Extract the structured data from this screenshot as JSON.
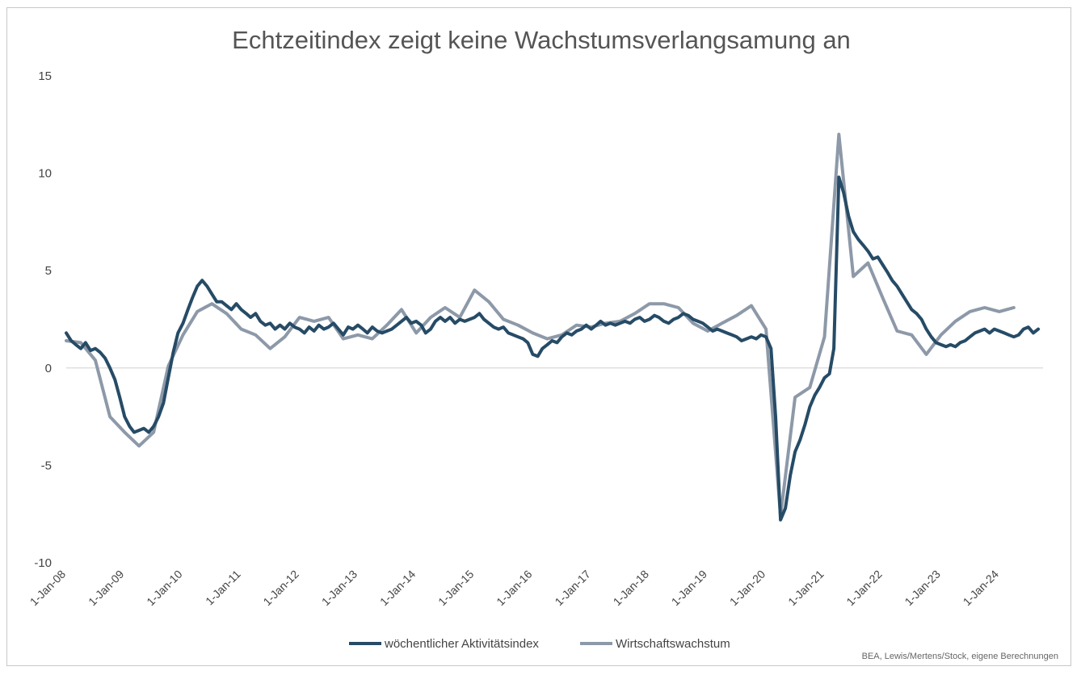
{
  "chart_data": {
    "type": "line",
    "title": "Echtzeitindex zeigt keine Wachstumsverlangsamung an",
    "xlabel": "",
    "ylabel": "",
    "ylim": [
      -10,
      15
    ],
    "yticks": [
      15,
      10,
      5,
      0,
      -5,
      -10
    ],
    "xlim": [
      "2008-01-01",
      "2024-10-01"
    ],
    "xticks": [
      {
        "label": "1-Jan-08",
        "date": "2008-01-01"
      },
      {
        "label": "1-Jan-09",
        "date": "2009-01-01"
      },
      {
        "label": "1-Jan-10",
        "date": "2010-01-01"
      },
      {
        "label": "1-Jan-11",
        "date": "2011-01-01"
      },
      {
        "label": "1-Jan-12",
        "date": "2012-01-01"
      },
      {
        "label": "1-Jan-13",
        "date": "2013-01-01"
      },
      {
        "label": "1-Jan-14",
        "date": "2014-01-01"
      },
      {
        "label": "1-Jan-15",
        "date": "2015-01-01"
      },
      {
        "label": "1-Jan-16",
        "date": "2016-01-01"
      },
      {
        "label": "1-Jan-17",
        "date": "2017-01-01"
      },
      {
        "label": "1-Jan-18",
        "date": "2018-01-01"
      },
      {
        "label": "1-Jan-19",
        "date": "2019-01-01"
      },
      {
        "label": "1-Jan-20",
        "date": "2020-01-01"
      },
      {
        "label": "1-Jan-21",
        "date": "2021-01-01"
      },
      {
        "label": "1-Jan-22",
        "date": "2022-01-01"
      },
      {
        "label": "1-Jan-23",
        "date": "2023-01-01"
      },
      {
        "label": "1-Jan-24",
        "date": "2024-01-01"
      }
    ],
    "grid": false,
    "legend_position": "bottom",
    "series": [
      {
        "name": "wöchentlicher Aktivitätsindex",
        "color": "#264b66",
        "points": [
          [
            "2008-01-01",
            1.8
          ],
          [
            "2008-02-01",
            1.4
          ],
          [
            "2008-03-01",
            1.2
          ],
          [
            "2008-04-01",
            1.0
          ],
          [
            "2008-05-01",
            1.3
          ],
          [
            "2008-06-01",
            0.9
          ],
          [
            "2008-07-01",
            1.0
          ],
          [
            "2008-08-01",
            0.8
          ],
          [
            "2008-09-01",
            0.5
          ],
          [
            "2008-10-01",
            0.0
          ],
          [
            "2008-11-01",
            -0.6
          ],
          [
            "2008-12-01",
            -1.5
          ],
          [
            "2009-01-01",
            -2.5
          ],
          [
            "2009-02-01",
            -3.0
          ],
          [
            "2009-03-01",
            -3.3
          ],
          [
            "2009-04-01",
            -3.2
          ],
          [
            "2009-05-01",
            -3.1
          ],
          [
            "2009-06-01",
            -3.3
          ],
          [
            "2009-07-01",
            -3.0
          ],
          [
            "2009-08-01",
            -2.5
          ],
          [
            "2009-09-01",
            -1.8
          ],
          [
            "2009-10-01",
            -0.5
          ],
          [
            "2009-11-01",
            0.8
          ],
          [
            "2009-12-01",
            1.8
          ],
          [
            "2010-01-01",
            2.3
          ],
          [
            "2010-02-01",
            3.0
          ],
          [
            "2010-03-01",
            3.6
          ],
          [
            "2010-04-01",
            4.2
          ],
          [
            "2010-05-01",
            4.5
          ],
          [
            "2010-06-01",
            4.2
          ],
          [
            "2010-07-01",
            3.8
          ],
          [
            "2010-08-01",
            3.4
          ],
          [
            "2010-09-01",
            3.4
          ],
          [
            "2010-10-01",
            3.2
          ],
          [
            "2010-11-01",
            3.0
          ],
          [
            "2010-12-01",
            3.3
          ],
          [
            "2011-01-01",
            3.0
          ],
          [
            "2011-02-01",
            2.8
          ],
          [
            "2011-03-01",
            2.6
          ],
          [
            "2011-04-01",
            2.8
          ],
          [
            "2011-05-01",
            2.4
          ],
          [
            "2011-06-01",
            2.2
          ],
          [
            "2011-07-01",
            2.3
          ],
          [
            "2011-08-01",
            2.0
          ],
          [
            "2011-09-01",
            2.2
          ],
          [
            "2011-10-01",
            2.0
          ],
          [
            "2011-11-01",
            2.3
          ],
          [
            "2011-12-01",
            2.1
          ],
          [
            "2012-01-01",
            2.0
          ],
          [
            "2012-02-01",
            1.8
          ],
          [
            "2012-03-01",
            2.1
          ],
          [
            "2012-04-01",
            1.9
          ],
          [
            "2012-05-01",
            2.2
          ],
          [
            "2012-06-01",
            2.0
          ],
          [
            "2012-07-01",
            2.1
          ],
          [
            "2012-08-01",
            2.3
          ],
          [
            "2012-09-01",
            2.0
          ],
          [
            "2012-10-01",
            1.7
          ],
          [
            "2012-11-01",
            2.1
          ],
          [
            "2012-12-01",
            2.0
          ],
          [
            "2013-01-01",
            2.2
          ],
          [
            "2013-02-01",
            2.0
          ],
          [
            "2013-03-01",
            1.8
          ],
          [
            "2013-04-01",
            2.1
          ],
          [
            "2013-05-01",
            1.9
          ],
          [
            "2013-06-01",
            1.8
          ],
          [
            "2013-07-01",
            1.9
          ],
          [
            "2013-08-01",
            2.0
          ],
          [
            "2013-09-01",
            2.2
          ],
          [
            "2013-10-01",
            2.4
          ],
          [
            "2013-11-01",
            2.6
          ],
          [
            "2013-12-01",
            2.3
          ],
          [
            "2014-01-01",
            2.4
          ],
          [
            "2014-02-01",
            2.2
          ],
          [
            "2014-03-01",
            1.8
          ],
          [
            "2014-04-01",
            2.0
          ],
          [
            "2014-05-01",
            2.4
          ],
          [
            "2014-06-01",
            2.6
          ],
          [
            "2014-07-01",
            2.4
          ],
          [
            "2014-08-01",
            2.6
          ],
          [
            "2014-09-01",
            2.3
          ],
          [
            "2014-10-01",
            2.5
          ],
          [
            "2014-11-01",
            2.4
          ],
          [
            "2014-12-01",
            2.5
          ],
          [
            "2015-01-01",
            2.6
          ],
          [
            "2015-02-01",
            2.8
          ],
          [
            "2015-03-01",
            2.5
          ],
          [
            "2015-04-01",
            2.3
          ],
          [
            "2015-05-01",
            2.1
          ],
          [
            "2015-06-01",
            2.0
          ],
          [
            "2015-07-01",
            2.1
          ],
          [
            "2015-08-01",
            1.8
          ],
          [
            "2015-09-01",
            1.7
          ],
          [
            "2015-10-01",
            1.6
          ],
          [
            "2015-11-01",
            1.5
          ],
          [
            "2015-12-01",
            1.3
          ],
          [
            "2016-01-01",
            0.7
          ],
          [
            "2016-02-01",
            0.6
          ],
          [
            "2016-03-01",
            1.0
          ],
          [
            "2016-04-01",
            1.2
          ],
          [
            "2016-05-01",
            1.4
          ],
          [
            "2016-06-01",
            1.3
          ],
          [
            "2016-07-01",
            1.6
          ],
          [
            "2016-08-01",
            1.8
          ],
          [
            "2016-09-01",
            1.7
          ],
          [
            "2016-10-01",
            1.9
          ],
          [
            "2016-11-01",
            2.0
          ],
          [
            "2016-12-01",
            2.2
          ],
          [
            "2017-01-01",
            2.0
          ],
          [
            "2017-02-01",
            2.2
          ],
          [
            "2017-03-01",
            2.4
          ],
          [
            "2017-04-01",
            2.2
          ],
          [
            "2017-05-01",
            2.3
          ],
          [
            "2017-06-01",
            2.2
          ],
          [
            "2017-07-01",
            2.3
          ],
          [
            "2017-08-01",
            2.4
          ],
          [
            "2017-09-01",
            2.3
          ],
          [
            "2017-10-01",
            2.5
          ],
          [
            "2017-11-01",
            2.6
          ],
          [
            "2017-12-01",
            2.4
          ],
          [
            "2018-01-01",
            2.5
          ],
          [
            "2018-02-01",
            2.7
          ],
          [
            "2018-03-01",
            2.6
          ],
          [
            "2018-04-01",
            2.4
          ],
          [
            "2018-05-01",
            2.3
          ],
          [
            "2018-06-01",
            2.5
          ],
          [
            "2018-07-01",
            2.6
          ],
          [
            "2018-08-01",
            2.8
          ],
          [
            "2018-09-01",
            2.7
          ],
          [
            "2018-10-01",
            2.5
          ],
          [
            "2018-11-01",
            2.4
          ],
          [
            "2018-12-01",
            2.3
          ],
          [
            "2019-01-01",
            2.1
          ],
          [
            "2019-02-01",
            1.9
          ],
          [
            "2019-03-01",
            2.0
          ],
          [
            "2019-04-01",
            1.9
          ],
          [
            "2019-05-01",
            1.8
          ],
          [
            "2019-06-01",
            1.7
          ],
          [
            "2019-07-01",
            1.6
          ],
          [
            "2019-08-01",
            1.4
          ],
          [
            "2019-09-01",
            1.5
          ],
          [
            "2019-10-01",
            1.6
          ],
          [
            "2019-11-01",
            1.5
          ],
          [
            "2019-12-01",
            1.7
          ],
          [
            "2020-01-01",
            1.6
          ],
          [
            "2020-02-01",
            1.0
          ],
          [
            "2020-03-01",
            -2.5
          ],
          [
            "2020-04-01",
            -7.8
          ],
          [
            "2020-05-01",
            -7.2
          ],
          [
            "2020-06-01",
            -5.5
          ],
          [
            "2020-07-01",
            -4.3
          ],
          [
            "2020-08-01",
            -3.7
          ],
          [
            "2020-09-01",
            -2.9
          ],
          [
            "2020-10-01",
            -2.0
          ],
          [
            "2020-11-01",
            -1.4
          ],
          [
            "2020-12-01",
            -1.0
          ],
          [
            "2021-01-01",
            -0.5
          ],
          [
            "2021-02-01",
            -0.3
          ],
          [
            "2021-03-01",
            1.0
          ],
          [
            "2021-04-01",
            9.8
          ],
          [
            "2021-05-01",
            9.0
          ],
          [
            "2021-06-01",
            7.8
          ],
          [
            "2021-07-01",
            7.0
          ],
          [
            "2021-08-01",
            6.6
          ],
          [
            "2021-09-01",
            6.3
          ],
          [
            "2021-10-01",
            6.0
          ],
          [
            "2021-11-01",
            5.6
          ],
          [
            "2021-12-01",
            5.7
          ],
          [
            "2022-01-01",
            5.3
          ],
          [
            "2022-02-01",
            4.9
          ],
          [
            "2022-03-01",
            4.5
          ],
          [
            "2022-04-01",
            4.2
          ],
          [
            "2022-05-01",
            3.8
          ],
          [
            "2022-06-01",
            3.4
          ],
          [
            "2022-07-01",
            3.0
          ],
          [
            "2022-08-01",
            2.8
          ],
          [
            "2022-09-01",
            2.5
          ],
          [
            "2022-10-01",
            2.0
          ],
          [
            "2022-11-01",
            1.6
          ],
          [
            "2022-12-01",
            1.3
          ],
          [
            "2023-01-01",
            1.2
          ],
          [
            "2023-02-01",
            1.1
          ],
          [
            "2023-03-01",
            1.2
          ],
          [
            "2023-04-01",
            1.1
          ],
          [
            "2023-05-01",
            1.3
          ],
          [
            "2023-06-01",
            1.4
          ],
          [
            "2023-07-01",
            1.6
          ],
          [
            "2023-08-01",
            1.8
          ],
          [
            "2023-09-01",
            1.9
          ],
          [
            "2023-10-01",
            2.0
          ],
          [
            "2023-11-01",
            1.8
          ],
          [
            "2023-12-01",
            2.0
          ],
          [
            "2024-01-01",
            1.9
          ],
          [
            "2024-02-01",
            1.8
          ],
          [
            "2024-03-01",
            1.7
          ],
          [
            "2024-04-01",
            1.6
          ],
          [
            "2024-05-01",
            1.7
          ],
          [
            "2024-06-01",
            2.0
          ],
          [
            "2024-07-01",
            2.1
          ],
          [
            "2024-08-01",
            1.8
          ],
          [
            "2024-09-01",
            2.0
          ]
        ]
      },
      {
        "name": "Wirtschaftswachstum",
        "color": "#8d99a8",
        "points": [
          [
            "2008-01-01",
            1.4
          ],
          [
            "2008-04-01",
            1.3
          ],
          [
            "2008-07-01",
            0.4
          ],
          [
            "2008-10-01",
            -2.5
          ],
          [
            "2009-01-01",
            -3.3
          ],
          [
            "2009-04-01",
            -4.0
          ],
          [
            "2009-07-01",
            -3.3
          ],
          [
            "2009-10-01",
            0.1
          ],
          [
            "2010-01-01",
            1.7
          ],
          [
            "2010-04-01",
            2.9
          ],
          [
            "2010-07-01",
            3.3
          ],
          [
            "2010-10-01",
            2.8
          ],
          [
            "2011-01-01",
            2.0
          ],
          [
            "2011-04-01",
            1.7
          ],
          [
            "2011-07-01",
            1.0
          ],
          [
            "2011-10-01",
            1.6
          ],
          [
            "2012-01-01",
            2.6
          ],
          [
            "2012-04-01",
            2.4
          ],
          [
            "2012-07-01",
            2.6
          ],
          [
            "2012-10-01",
            1.5
          ],
          [
            "2013-01-01",
            1.7
          ],
          [
            "2013-04-01",
            1.5
          ],
          [
            "2013-07-01",
            2.2
          ],
          [
            "2013-10-01",
            3.0
          ],
          [
            "2014-01-01",
            1.8
          ],
          [
            "2014-04-01",
            2.6
          ],
          [
            "2014-07-01",
            3.1
          ],
          [
            "2014-10-01",
            2.6
          ],
          [
            "2015-01-01",
            4.0
          ],
          [
            "2015-04-01",
            3.4
          ],
          [
            "2015-07-01",
            2.5
          ],
          [
            "2015-10-01",
            2.2
          ],
          [
            "2016-01-01",
            1.8
          ],
          [
            "2016-04-01",
            1.5
          ],
          [
            "2016-07-01",
            1.7
          ],
          [
            "2016-10-01",
            2.2
          ],
          [
            "2017-01-01",
            2.1
          ],
          [
            "2017-04-01",
            2.3
          ],
          [
            "2017-07-01",
            2.4
          ],
          [
            "2017-10-01",
            2.8
          ],
          [
            "2018-01-01",
            3.3
          ],
          [
            "2018-04-01",
            3.3
          ],
          [
            "2018-07-01",
            3.1
          ],
          [
            "2018-10-01",
            2.3
          ],
          [
            "2019-01-01",
            1.9
          ],
          [
            "2019-04-01",
            2.3
          ],
          [
            "2019-07-01",
            2.7
          ],
          [
            "2019-10-01",
            3.2
          ],
          [
            "2020-01-01",
            2.0
          ],
          [
            "2020-04-01",
            -7.6
          ],
          [
            "2020-07-01",
            -1.5
          ],
          [
            "2020-10-01",
            -1.0
          ],
          [
            "2021-01-01",
            1.6
          ],
          [
            "2021-04-01",
            12.0
          ],
          [
            "2021-07-01",
            4.7
          ],
          [
            "2021-10-01",
            5.4
          ],
          [
            "2022-01-01",
            3.6
          ],
          [
            "2022-04-01",
            1.9
          ],
          [
            "2022-07-01",
            1.7
          ],
          [
            "2022-10-01",
            0.7
          ],
          [
            "2023-01-01",
            1.7
          ],
          [
            "2023-04-01",
            2.4
          ],
          [
            "2023-07-01",
            2.9
          ],
          [
            "2023-10-01",
            3.1
          ],
          [
            "2024-01-01",
            2.9
          ],
          [
            "2024-04-01",
            3.1
          ]
        ]
      }
    ],
    "source": "BEA, Lewis/Mertens/Stock, eigene Berechnungen"
  }
}
